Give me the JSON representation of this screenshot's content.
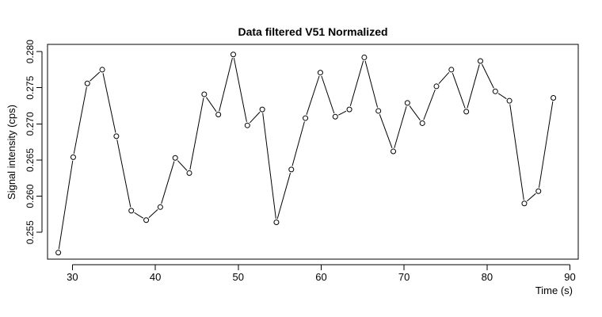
{
  "chart_data": {
    "type": "line",
    "title": "Data filtered V51 Normalized",
    "xlabel": "Time (s)",
    "ylabel": "Signal intensity (cps)",
    "xlim": [
      27.0,
      91.0
    ],
    "ylim": [
      0.2513,
      0.281
    ],
    "grid": false,
    "x_ticks": [
      30,
      40,
      50,
      60,
      70,
      80,
      90
    ],
    "y_ticks": [
      0.255,
      0.26,
      0.265,
      0.27,
      0.275,
      0.28
    ],
    "x_tick_labels": [
      "30",
      "40",
      "50",
      "60",
      "70",
      "80",
      "90"
    ],
    "y_tick_labels": [
      "0.255",
      "0.260",
      "0.265",
      "0.270",
      "0.275",
      "0.280"
    ],
    "series": [
      {
        "marker": "open-circle",
        "line": true,
        "x": [
          28.3,
          30.1,
          31.8,
          33.6,
          35.3,
          37.1,
          38.9,
          40.6,
          42.4,
          44.1,
          45.9,
          47.6,
          49.4,
          51.1,
          52.9,
          54.6,
          56.4,
          58.1,
          59.9,
          61.7,
          63.4,
          65.2,
          66.9,
          68.7,
          70.4,
          72.2,
          73.9,
          75.7,
          77.5,
          79.2,
          81.0,
          82.7,
          84.5,
          86.2,
          88.0
        ],
        "y": [
          0.2522,
          0.2654,
          0.2756,
          0.2775,
          0.2683,
          0.258,
          0.2567,
          0.2585,
          0.2653,
          0.2632,
          0.2741,
          0.2713,
          0.2796,
          0.2698,
          0.272,
          0.2564,
          0.2637,
          0.2708,
          0.2771,
          0.271,
          0.272,
          0.2792,
          0.2718,
          0.2662,
          0.2729,
          0.2701,
          0.2752,
          0.2775,
          0.2717,
          0.2787,
          0.2745,
          0.2732,
          0.259,
          0.2607,
          0.2736
        ]
      }
    ]
  }
}
